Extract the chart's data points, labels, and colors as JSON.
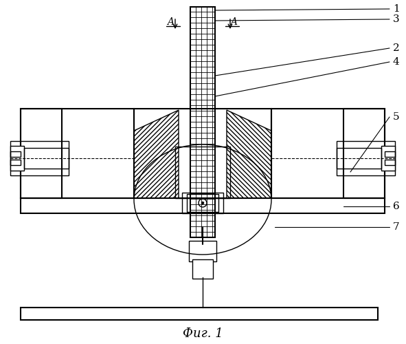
{
  "bg_color": "#ffffff",
  "line_color": "#000000",
  "hatch_color": "#000000",
  "fig_label": "Фиг. 1",
  "labels": [
    "1",
    "2",
    "3",
    "4",
    "5",
    "6",
    "7"
  ],
  "section_label_left": "A",
  "section_label_right": "A",
  "title": ""
}
